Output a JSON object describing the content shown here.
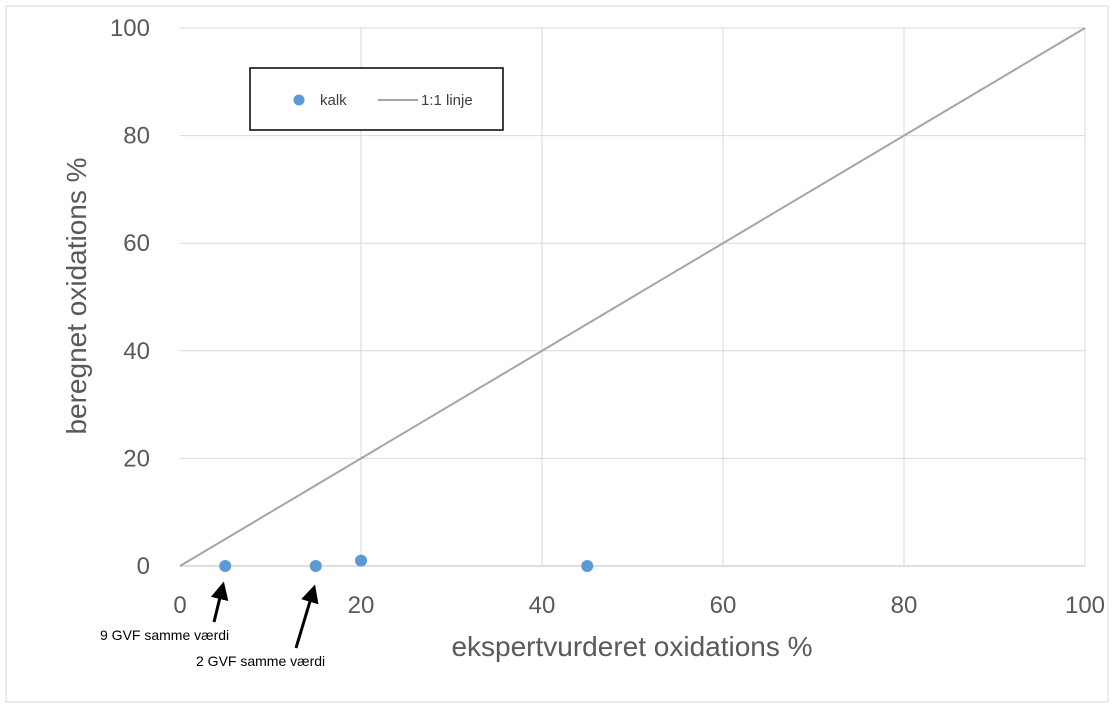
{
  "chart_data": {
    "type": "scatter",
    "title": "",
    "xlabel": "ekspertvurderet oxidations %",
    "ylabel": "beregnet oxidations %",
    "xlim": [
      0,
      100
    ],
    "ylim": [
      0,
      100
    ],
    "xticks": [
      "0",
      "20",
      "40",
      "60",
      "80",
      "100"
    ],
    "yticks": [
      "0",
      "20",
      "40",
      "60",
      "80",
      "100"
    ],
    "grid": true,
    "legend_position": "top-left",
    "series": [
      {
        "name": "kalk",
        "kind": "scatter",
        "color": "#5b9bd5",
        "points": [
          {
            "x": 5,
            "y": 0
          },
          {
            "x": 15,
            "y": 0
          },
          {
            "x": 20,
            "y": 1
          },
          {
            "x": 45,
            "y": 0
          }
        ]
      },
      {
        "name": "1:1 linje",
        "kind": "line",
        "color": "#a5a5a5",
        "points": [
          {
            "x": 0,
            "y": 0
          },
          {
            "x": 100,
            "y": 100
          }
        ]
      }
    ],
    "annotations": [
      {
        "text": "9 GVF samme værdi",
        "x": 5,
        "y": 0
      },
      {
        "text": "2 GVF samme værdi",
        "x": 15,
        "y": 0
      }
    ]
  }
}
